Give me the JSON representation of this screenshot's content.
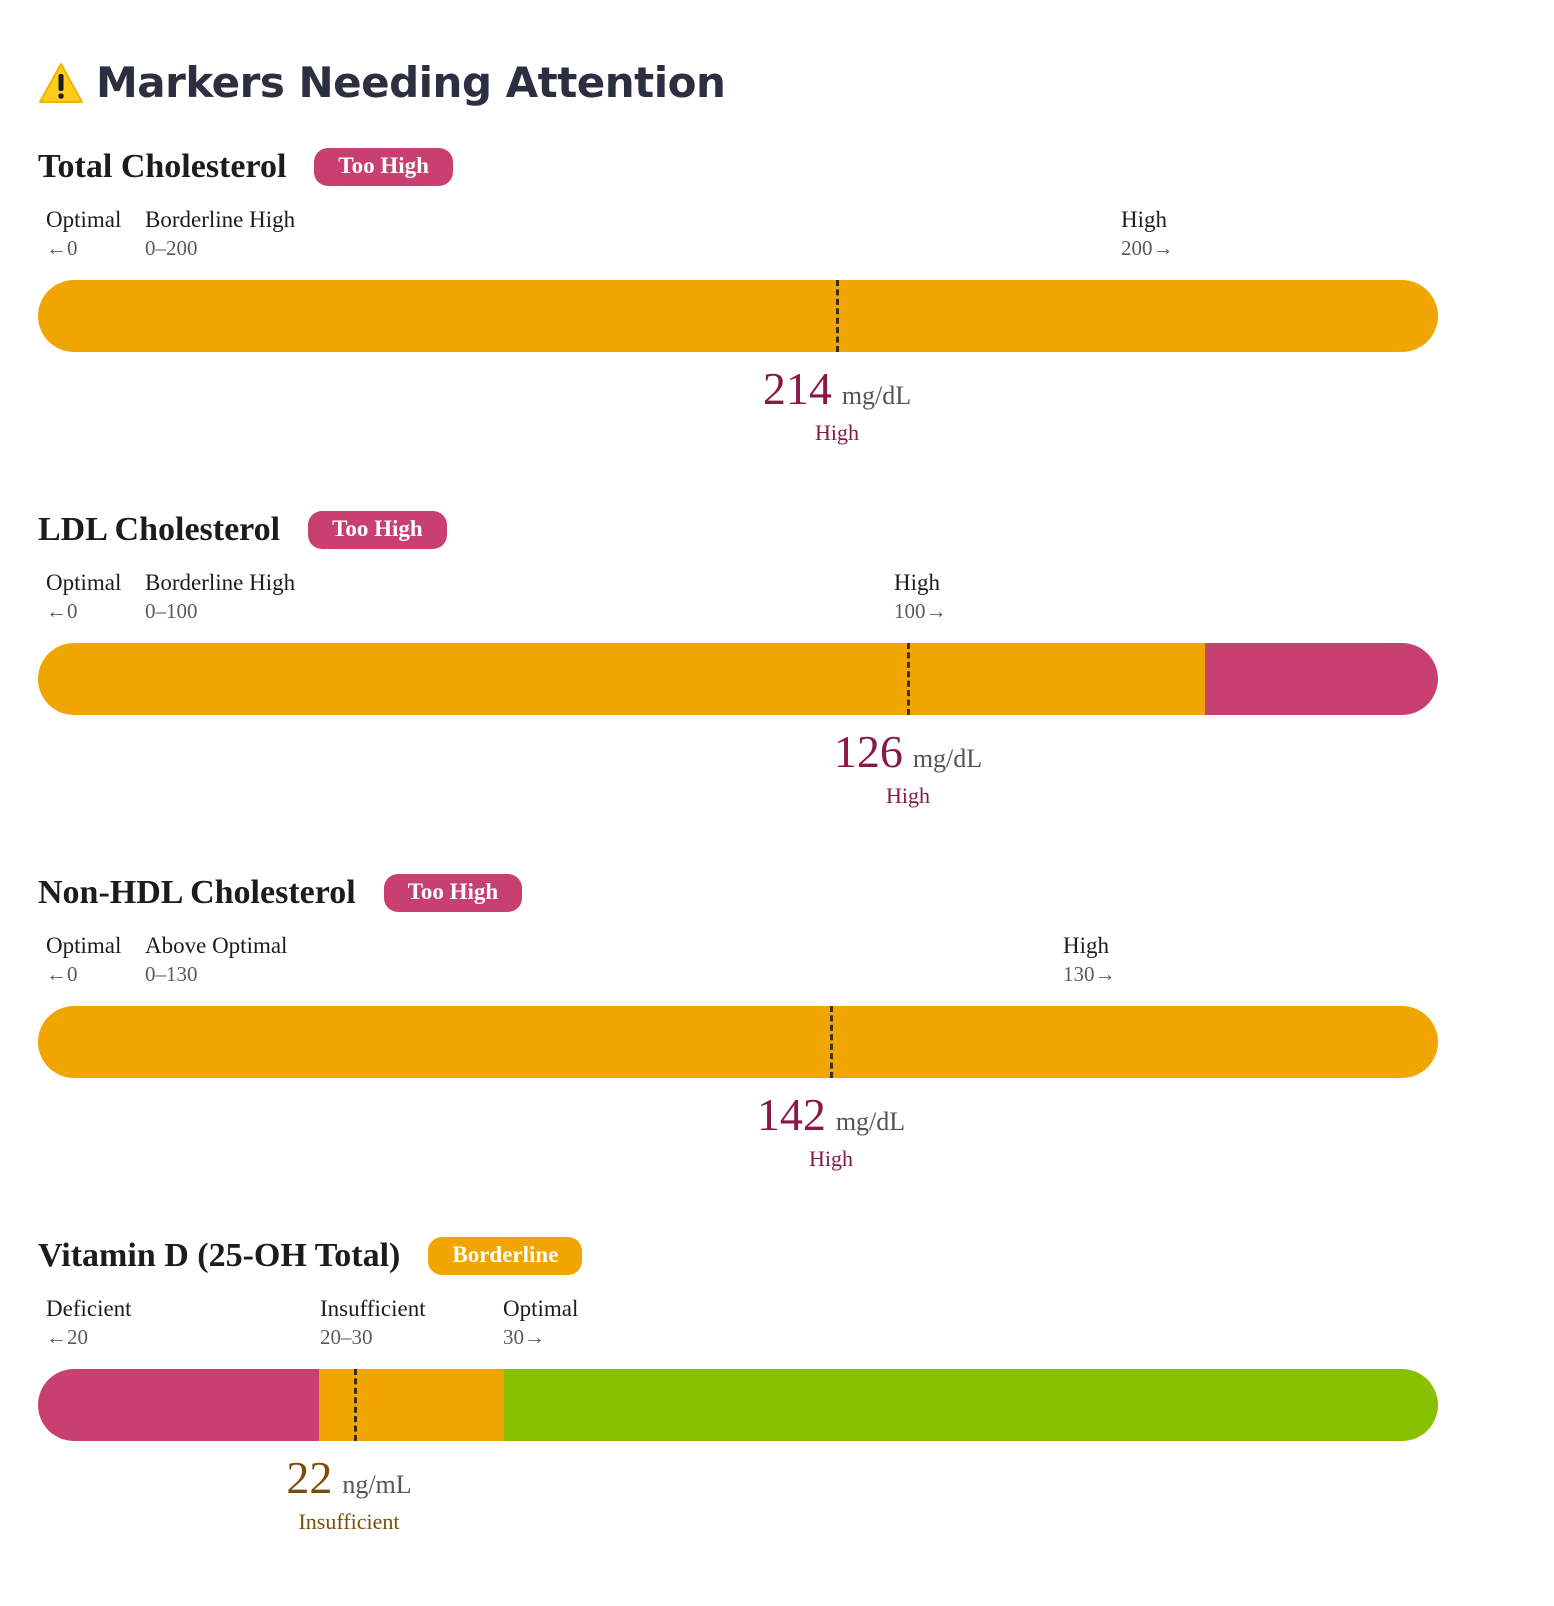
{
  "title": "Markers Needing Attention",
  "title_icon": "warning-icon",
  "colors": {
    "high": "#c84070",
    "borderline": "#f0a500",
    "optimal": "#88c100",
    "value_high": "#8a1846",
    "value_borderline": "#7a4d08"
  },
  "markers": [
    {
      "name": "Total Cholesterol",
      "badge": "Too High",
      "badge_color": "#c84070",
      "zones": [
        {
          "name": "Optimal",
          "range": "←0"
        },
        {
          "name": "Borderline High",
          "range": "0–200"
        },
        {
          "name": "High",
          "range": "200→"
        }
      ],
      "value": "214",
      "unit": "mg/dL",
      "status": "High",
      "value_color": "#8a1846"
    },
    {
      "name": "LDL Cholesterol",
      "badge": "Too High",
      "badge_color": "#c84070",
      "zones": [
        {
          "name": "Optimal",
          "range": "←0"
        },
        {
          "name": "Borderline High",
          "range": "0–100"
        },
        {
          "name": "High",
          "range": "100→"
        }
      ],
      "value": "126",
      "unit": "mg/dL",
      "status": "High",
      "value_color": "#8a1846"
    },
    {
      "name": "Non-HDL Cholesterol",
      "badge": "Too High",
      "badge_color": "#c84070",
      "zones": [
        {
          "name": "Optimal",
          "range": "←0"
        },
        {
          "name": "Above Optimal",
          "range": "0–130"
        },
        {
          "name": "High",
          "range": "130→"
        }
      ],
      "value": "142",
      "unit": "mg/dL",
      "status": "High",
      "value_color": "#8a1846"
    },
    {
      "name": "Vitamin D (25-OH Total)",
      "badge": "Borderline",
      "badge_color": "#f0a500",
      "zones": [
        {
          "name": "Deficient",
          "range": "←20"
        },
        {
          "name": "Insufficient",
          "range": "20–30"
        },
        {
          "name": "Optimal",
          "range": "30→"
        }
      ],
      "value": "22",
      "unit": "ng/mL",
      "status": "Insufficient",
      "value_color": "#7a4d08"
    }
  ]
}
